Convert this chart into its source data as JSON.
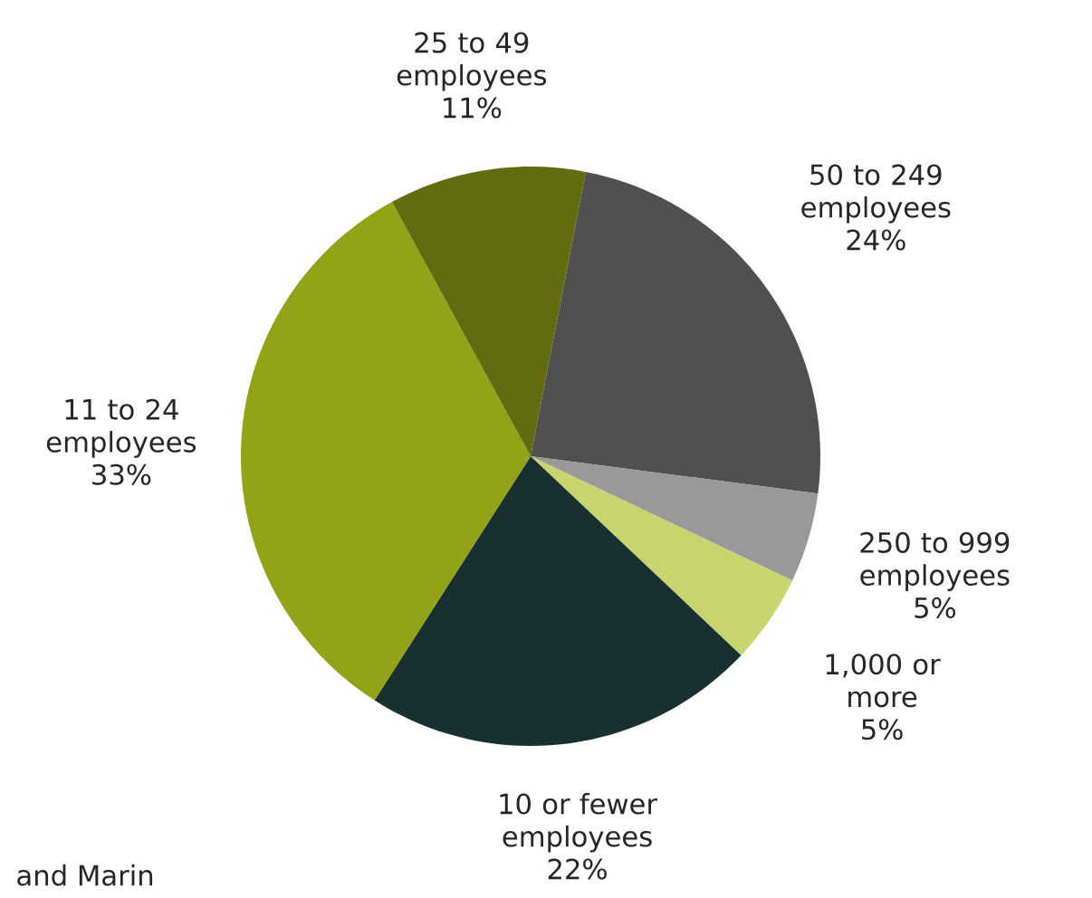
{
  "chart_data": {
    "type": "pie",
    "categories": [
      "50 to 249 employees",
      "250 to 999 employees",
      "1,000 or more",
      "10 or fewer employees",
      "11 to 24 employees",
      "25 to 49 employees"
    ],
    "values": [
      24,
      5,
      5,
      22,
      33,
      11
    ],
    "value_labels": [
      "24%",
      "5%",
      "5%",
      "22%",
      "33%",
      "11%"
    ],
    "colors": [
      "#505050",
      "#999999",
      "#c8d46e",
      "#183030",
      "#92a318",
      "#636b10"
    ],
    "annotations": [
      "and Marin"
    ]
  }
}
